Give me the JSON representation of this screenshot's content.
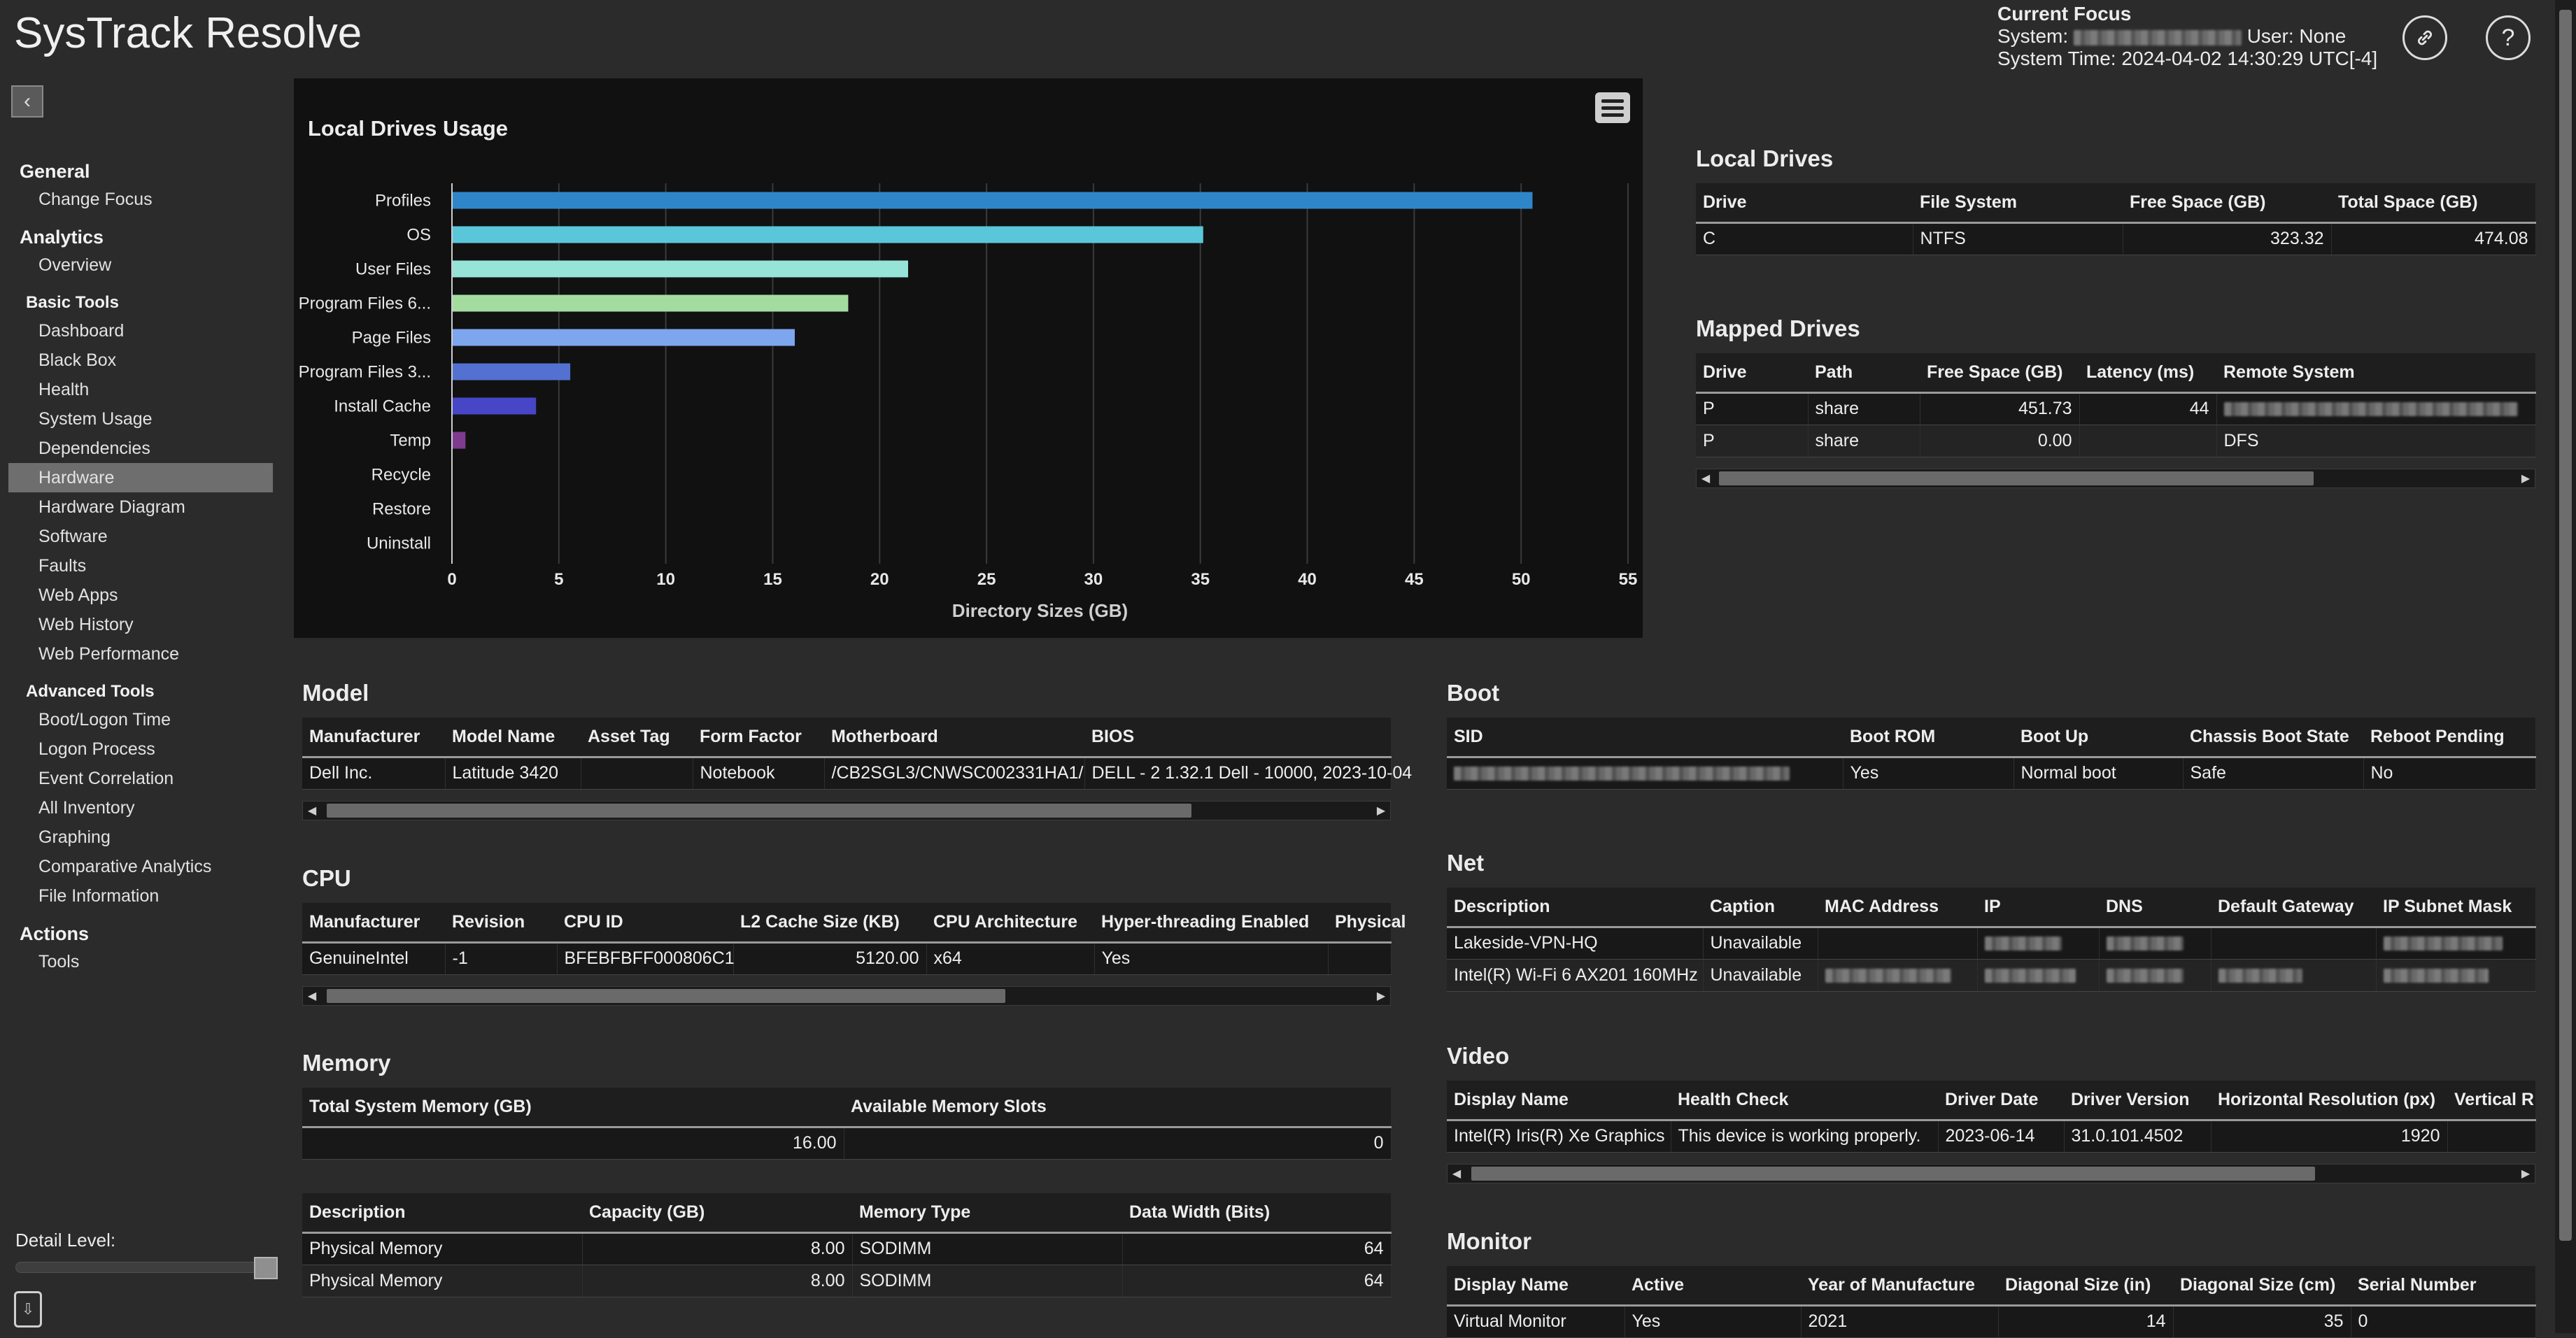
{
  "app": {
    "title": "SysTrack Resolve"
  },
  "focus": {
    "heading": "Current Focus",
    "system_label": "System:",
    "user_label": "User:",
    "user_value": "None",
    "time_label": "System Time:",
    "time_value": "2024-04-02 14:30:29 UTC[-4]"
  },
  "header_buttons": {
    "link_icon": "link-icon",
    "help_glyph": "?"
  },
  "sidebar": {
    "groups": [
      {
        "heading": "General",
        "items": [
          "Change Focus"
        ]
      },
      {
        "heading": "Analytics",
        "items": [
          "Overview"
        ]
      },
      {
        "heading": "Basic Tools",
        "items": [
          "Dashboard",
          "Black Box",
          "Health",
          "System Usage",
          "Dependencies",
          "Hardware",
          "Hardware Diagram",
          "Software",
          "Faults",
          "Web Apps",
          "Web History",
          "Web Performance"
        ]
      },
      {
        "heading": "Advanced Tools",
        "items": [
          "Boot/Logon Time",
          "Logon Process",
          "Event Correlation",
          "All Inventory",
          "Graphing",
          "Comparative Analytics",
          "File Information"
        ]
      },
      {
        "heading": "Actions",
        "items": [
          "Tools"
        ]
      }
    ],
    "active_item": "Hardware",
    "detail_level_label": "Detail Level:",
    "detail_level_value": 1.0
  },
  "chart_data": {
    "type": "bar",
    "orientation": "horizontal",
    "title": "Local Drives Usage",
    "xlabel": "Directory Sizes (GB)",
    "ylabel": "",
    "xlim": [
      0,
      55
    ],
    "xticks": [
      0,
      5,
      10,
      15,
      20,
      25,
      30,
      35,
      40,
      45,
      50,
      55
    ],
    "grid": true,
    "categories": [
      "Profiles",
      "OS",
      "User Files",
      "Program Files 6...",
      "Page Files",
      "Program Files 3...",
      "Install Cache",
      "Temp",
      "Recycle",
      "Restore",
      "Uninstall"
    ],
    "values": [
      50.5,
      35.1,
      21.3,
      18.5,
      16.0,
      5.5,
      3.9,
      0.6,
      0,
      0,
      0
    ],
    "colors": [
      "#2e86c8",
      "#5ac6da",
      "#96e3d7",
      "#a4dca0",
      "#7ea6ee",
      "#5371d1",
      "#4646c6",
      "#7e3b8f",
      "#7e3b8f",
      "#7e3b8f",
      "#7e3b8f"
    ]
  },
  "local_drives": {
    "title": "Local Drives",
    "columns": [
      "Drive",
      "File System",
      "Free Space (GB)",
      "Total Space (GB)"
    ],
    "rows": [
      [
        "C",
        "NTFS",
        "323.32",
        "474.08"
      ]
    ]
  },
  "mapped_drives": {
    "title": "Mapped Drives",
    "columns": [
      "Drive",
      "Path",
      "Free Space (GB)",
      "Latency (ms)",
      "Remote System"
    ],
    "rows": [
      [
        "P",
        "share",
        "451.73",
        "44",
        ""
      ],
      [
        "P",
        "share",
        "0.00",
        "",
        "DFS"
      ]
    ]
  },
  "model": {
    "title": "Model",
    "columns": [
      "Manufacturer",
      "Model Name",
      "Asset Tag",
      "Form Factor",
      "Motherboard",
      "BIOS"
    ],
    "rows": [
      [
        "Dell Inc.",
        "Latitude 3420",
        "",
        "Notebook",
        "/CB2SGL3/CNWSC002331HA1/",
        "DELL - 2 1.32.1 Dell - 10000, 2023-10-04"
      ]
    ]
  },
  "cpu": {
    "title": "CPU",
    "columns": [
      "Manufacturer",
      "Revision",
      "CPU ID",
      "L2 Cache Size (KB)",
      "CPU Architecture",
      "Hyper-threading Enabled",
      "Physical"
    ],
    "rows": [
      [
        "GenuineIntel",
        "-1",
        "BFEBFBFF000806C1",
        "5120.00",
        "x64",
        "Yes",
        ""
      ]
    ]
  },
  "memory": {
    "title": "Memory",
    "summary_columns": [
      "Total System Memory (GB)",
      "Available Memory Slots"
    ],
    "summary_row": [
      "16.00",
      "0"
    ],
    "columns": [
      "Description",
      "Capacity (GB)",
      "Memory Type",
      "Data Width (Bits)"
    ],
    "rows": [
      [
        "Physical Memory",
        "8.00",
        "SODIMM",
        "64"
      ],
      [
        "Physical Memory",
        "8.00",
        "SODIMM",
        "64"
      ]
    ]
  },
  "boot": {
    "title": "Boot",
    "columns": [
      "SID",
      "Boot ROM",
      "Boot Up",
      "Chassis Boot State",
      "Reboot Pending"
    ],
    "rows": [
      [
        "",
        "Yes",
        "Normal boot",
        "Safe",
        "No"
      ]
    ]
  },
  "net": {
    "title": "Net",
    "columns": [
      "Description",
      "Caption",
      "MAC Address",
      "IP",
      "DNS",
      "Default Gateway",
      "IP Subnet Mask"
    ],
    "rows": [
      [
        "Lakeside-VPN-HQ",
        "Unavailable",
        "",
        "",
        "",
        "",
        ""
      ],
      [
        "Intel(R) Wi-Fi 6 AX201 160MHz",
        "Unavailable",
        "",
        "",
        "",
        "",
        ""
      ]
    ]
  },
  "video": {
    "title": "Video",
    "columns": [
      "Display Name",
      "Health Check",
      "Driver Date",
      "Driver Version",
      "Horizontal Resolution (px)",
      "Vertical R"
    ],
    "rows": [
      [
        "Intel(R) Iris(R) Xe Graphics",
        "This device is working properly.",
        "2023-06-14",
        "31.0.101.4502",
        "1920",
        ""
      ]
    ]
  },
  "monitor": {
    "title": "Monitor",
    "columns": [
      "Display Name",
      "Active",
      "Year of Manufacture",
      "Diagonal Size (in)",
      "Diagonal Size (cm)",
      "Serial Number"
    ],
    "rows": [
      [
        "Virtual Monitor",
        "Yes",
        "2021",
        "14",
        "35",
        "0"
      ]
    ]
  }
}
